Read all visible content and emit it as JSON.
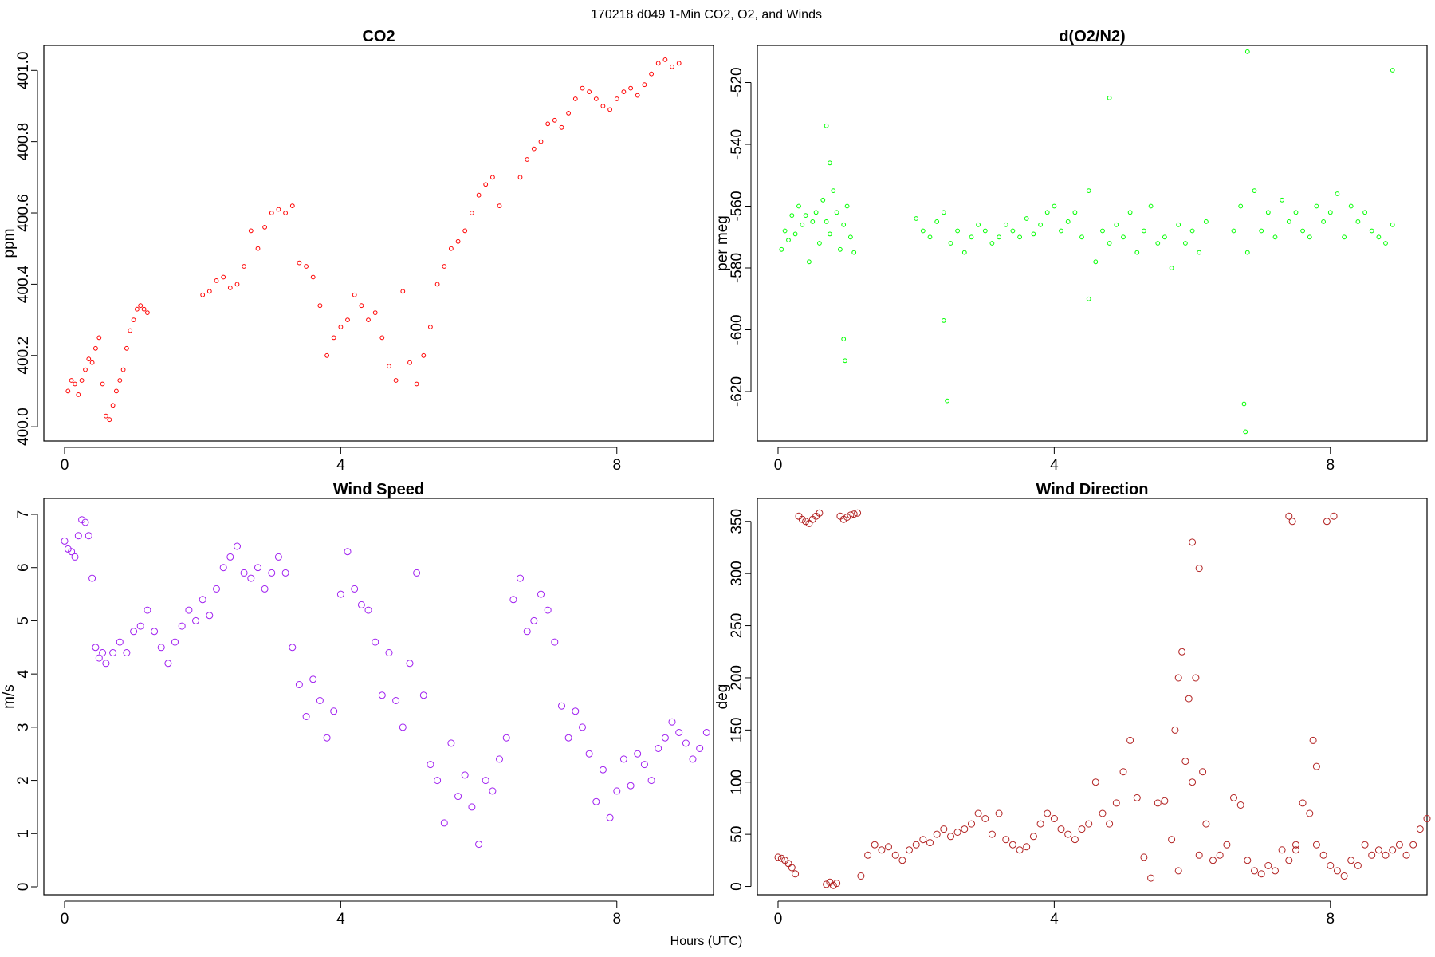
{
  "figure": {
    "title": "170218   d049   1-Min CO2, O2, and Winds",
    "xlabel": "Hours (UTC)"
  },
  "chart_data": [
    {
      "type": "scatter",
      "title": "CO2",
      "ylabel": "ppm",
      "xlabel": "",
      "xlim": [
        -0.3,
        9.4
      ],
      "ylim": [
        399.96,
        401.07
      ],
      "xticks": [
        0,
        4,
        8
      ],
      "yticks": [
        400.0,
        400.2,
        400.4,
        400.6,
        400.8,
        401.0
      ],
      "ytick_labels": [
        "400.0",
        "400.2",
        "400.4",
        "400.6",
        "400.8",
        "401.0"
      ],
      "series": [
        {
          "color": "#ff0000",
          "x": [
            0.05,
            0.1,
            0.15,
            0.2,
            0.25,
            0.3,
            0.35,
            0.4,
            0.45,
            0.5,
            0.55,
            0.6,
            0.65,
            0.7,
            0.75,
            0.8,
            0.85,
            0.9,
            0.95,
            1.0,
            1.05,
            1.1,
            1.15,
            1.2,
            2.0,
            2.1,
            2.2,
            2.3,
            2.4,
            2.5,
            2.6,
            2.7,
            2.8,
            2.9,
            3.0,
            3.1,
            3.2,
            3.3,
            3.4,
            3.5,
            3.6,
            3.7,
            3.8,
            3.9,
            4.0,
            4.1,
            4.2,
            4.3,
            4.4,
            4.5,
            4.6,
            4.7,
            4.8,
            4.9,
            5.0,
            5.1,
            5.2,
            5.3,
            5.4,
            5.5,
            5.6,
            5.7,
            5.8,
            5.9,
            6.0,
            6.1,
            6.2,
            6.3,
            6.6,
            6.7,
            6.8,
            6.9,
            7.0,
            7.1,
            7.2,
            7.3,
            7.4,
            7.5,
            7.6,
            7.7,
            7.8,
            7.9,
            8.0,
            8.1,
            8.2,
            8.3,
            8.4,
            8.5,
            8.6,
            8.7,
            8.8,
            8.9
          ],
          "y": [
            400.1,
            400.13,
            400.12,
            400.09,
            400.13,
            400.16,
            400.19,
            400.18,
            400.22,
            400.25,
            400.12,
            400.03,
            400.02,
            400.06,
            400.1,
            400.13,
            400.16,
            400.22,
            400.27,
            400.3,
            400.33,
            400.34,
            400.33,
            400.32,
            400.37,
            400.38,
            400.41,
            400.42,
            400.39,
            400.4,
            400.45,
            400.55,
            400.5,
            400.56,
            400.6,
            400.61,
            400.6,
            400.62,
            400.46,
            400.45,
            400.42,
            400.34,
            400.2,
            400.25,
            400.28,
            400.3,
            400.37,
            400.34,
            400.3,
            400.32,
            400.25,
            400.17,
            400.13,
            400.38,
            400.18,
            400.12,
            400.2,
            400.28,
            400.4,
            400.45,
            400.5,
            400.52,
            400.55,
            400.6,
            400.65,
            400.68,
            400.7,
            400.62,
            400.7,
            400.75,
            400.78,
            400.8,
            400.85,
            400.86,
            400.84,
            400.88,
            400.92,
            400.95,
            400.94,
            400.92,
            400.9,
            400.89,
            400.92,
            400.94,
            400.95,
            400.93,
            400.96,
            400.99,
            401.02,
            401.03,
            401.01,
            401.02
          ]
        }
      ]
    },
    {
      "type": "scatter",
      "title": "d(O2/N2)",
      "ylabel": "per meg",
      "xlabel": "",
      "xlim": [
        -0.3,
        9.4
      ],
      "ylim": [
        -636,
        -508
      ],
      "xticks": [
        0,
        4,
        8
      ],
      "yticks": [
        -620,
        -600,
        -580,
        -560,
        -540,
        -520
      ],
      "ytick_labels": [
        "-620",
        "-600",
        "-580",
        "-560",
        "-540",
        "-520"
      ],
      "series": [
        {
          "color": "#00ff00",
          "x": [
            0.05,
            0.1,
            0.15,
            0.2,
            0.25,
            0.3,
            0.35,
            0.4,
            0.45,
            0.5,
            0.55,
            0.6,
            0.65,
            0.7,
            0.75,
            0.8,
            0.85,
            0.9,
            0.95,
            1.0,
            1.05,
            1.1,
            2.0,
            2.1,
            2.2,
            2.3,
            2.4,
            2.5,
            2.6,
            2.7,
            2.8,
            2.9,
            3.0,
            3.1,
            3.2,
            3.3,
            3.4,
            3.5,
            3.6,
            3.7,
            3.8,
            3.9,
            4.0,
            4.1,
            4.2,
            4.3,
            4.4,
            4.5,
            4.6,
            4.7,
            4.8,
            4.9,
            5.0,
            5.1,
            5.2,
            5.3,
            5.4,
            5.5,
            5.6,
            5.7,
            5.8,
            5.9,
            6.0,
            6.1,
            6.2,
            6.6,
            6.7,
            6.8,
            6.9,
            7.0,
            7.1,
            7.2,
            7.3,
            7.4,
            7.5,
            7.6,
            7.7,
            7.8,
            7.9,
            8.0,
            8.1,
            8.2,
            8.3,
            8.4,
            8.5,
            8.6,
            8.7,
            8.8,
            8.9,
            2.4,
            2.45,
            6.75,
            6.77,
            0.95,
            0.97,
            0.7,
            0.75,
            4.8,
            4.5,
            6.8,
            8.9
          ],
          "y": [
            -574,
            -568,
            -571,
            -563,
            -569,
            -560,
            -566,
            -563,
            -578,
            -565,
            -562,
            -572,
            -558,
            -565,
            -569,
            -555,
            -562,
            -574,
            -566,
            -560,
            -570,
            -575,
            -564,
            -568,
            -570,
            -565,
            -562,
            -572,
            -568,
            -575,
            -570,
            -566,
            -568,
            -572,
            -570,
            -566,
            -568,
            -570,
            -564,
            -569,
            -566,
            -562,
            -560,
            -568,
            -565,
            -562,
            -570,
            -555,
            -578,
            -568,
            -572,
            -566,
            -570,
            -562,
            -575,
            -568,
            -560,
            -572,
            -570,
            -580,
            -566,
            -572,
            -568,
            -575,
            -565,
            -568,
            -560,
            -575,
            -555,
            -568,
            -562,
            -570,
            -558,
            -565,
            -562,
            -568,
            -570,
            -560,
            -565,
            -562,
            -556,
            -570,
            -560,
            -565,
            -562,
            -568,
            -570,
            -572,
            -566,
            -597,
            -623,
            -624,
            -633,
            -603,
            -610,
            -534,
            -546,
            -525,
            -590,
            -510,
            -516
          ]
        }
      ]
    },
    {
      "type": "scatter",
      "title": "Wind Speed",
      "ylabel": "m/s",
      "xlabel": "",
      "xlim": [
        -0.3,
        9.4
      ],
      "ylim": [
        -0.15,
        7.3
      ],
      "xticks": [
        0,
        4,
        8
      ],
      "yticks": [
        0,
        1,
        2,
        3,
        4,
        5,
        6,
        7
      ],
      "ytick_labels": [
        "0",
        "1",
        "2",
        "3",
        "4",
        "5",
        "6",
        "7"
      ],
      "series": [
        {
          "color": "#a020f0",
          "x": [
            0.0,
            0.05,
            0.1,
            0.15,
            0.2,
            0.25,
            0.3,
            0.35,
            0.4,
            0.45,
            0.5,
            0.55,
            0.6,
            0.7,
            0.8,
            0.9,
            1.0,
            1.1,
            1.2,
            1.3,
            1.4,
            1.5,
            1.6,
            1.7,
            1.8,
            1.9,
            2.0,
            2.1,
            2.2,
            2.3,
            2.4,
            2.5,
            2.6,
            2.7,
            2.8,
            2.9,
            3.0,
            3.1,
            3.2,
            3.3,
            3.4,
            3.5,
            3.6,
            3.7,
            3.8,
            3.9,
            4.0,
            4.1,
            4.2,
            4.3,
            4.4,
            4.5,
            4.6,
            4.7,
            4.8,
            4.9,
            5.0,
            5.1,
            5.2,
            5.3,
            5.4,
            5.5,
            5.6,
            5.7,
            5.8,
            5.9,
            6.0,
            6.1,
            6.2,
            6.3,
            6.4,
            6.5,
            6.6,
            6.7,
            6.8,
            6.9,
            7.0,
            7.1,
            7.2,
            7.3,
            7.4,
            7.5,
            7.6,
            7.7,
            7.8,
            7.9,
            8.0,
            8.1,
            8.2,
            8.3,
            8.4,
            8.5,
            8.6,
            8.7,
            8.8,
            8.9,
            9.0,
            9.1,
            9.2,
            9.3
          ],
          "y": [
            6.5,
            6.35,
            6.3,
            6.2,
            6.6,
            6.9,
            6.85,
            6.6,
            5.8,
            4.5,
            4.3,
            4.4,
            4.2,
            4.4,
            4.6,
            4.4,
            4.8,
            4.9,
            5.2,
            4.8,
            4.5,
            4.2,
            4.6,
            4.9,
            5.2,
            5.0,
            5.4,
            5.1,
            5.6,
            6.0,
            6.2,
            6.4,
            5.9,
            5.8,
            6.0,
            5.6,
            5.9,
            6.2,
            5.9,
            4.5,
            3.8,
            3.2,
            3.9,
            3.5,
            2.8,
            3.3,
            5.5,
            6.3,
            5.6,
            5.3,
            5.2,
            4.6,
            3.6,
            4.4,
            3.5,
            3.0,
            4.2,
            5.9,
            3.6,
            2.3,
            2.0,
            1.2,
            2.7,
            1.7,
            2.1,
            1.5,
            0.8,
            2.0,
            1.8,
            2.4,
            2.8,
            5.4,
            5.8,
            4.8,
            5.0,
            5.5,
            5.2,
            4.6,
            3.4,
            2.8,
            3.3,
            3.0,
            2.5,
            1.6,
            2.2,
            1.3,
            1.8,
            2.4,
            1.9,
            2.5,
            2.3,
            2.0,
            2.6,
            2.8,
            3.1,
            2.9,
            2.7,
            2.4,
            2.6,
            2.9
          ]
        }
      ]
    },
    {
      "type": "scatter",
      "title": "Wind Direction",
      "ylabel": "deg",
      "xlabel": "",
      "xlim": [
        -0.3,
        9.4
      ],
      "ylim": [
        -8,
        372
      ],
      "xticks": [
        0,
        4,
        8
      ],
      "yticks": [
        0,
        50,
        100,
        150,
        200,
        250,
        300,
        350
      ],
      "ytick_labels": [
        "0",
        "50",
        "100",
        "150",
        "200",
        "250",
        "300",
        "350"
      ],
      "series": [
        {
          "color": "#b22222",
          "x": [
            0.0,
            0.05,
            0.1,
            0.15,
            0.2,
            0.25,
            0.3,
            0.35,
            0.4,
            0.45,
            0.5,
            0.55,
            0.6,
            0.7,
            0.75,
            0.8,
            0.85,
            0.9,
            0.95,
            1.0,
            1.05,
            1.1,
            1.15,
            1.2,
            1.3,
            1.4,
            1.5,
            1.6,
            1.7,
            1.8,
            1.9,
            2.0,
            2.1,
            2.2,
            2.3,
            2.4,
            2.5,
            2.6,
            2.7,
            2.8,
            2.9,
            3.0,
            3.1,
            3.2,
            3.3,
            3.4,
            3.5,
            3.6,
            3.7,
            3.8,
            3.9,
            4.0,
            4.1,
            4.2,
            4.3,
            4.4,
            4.5,
            4.6,
            4.7,
            4.8,
            4.9,
            5.0,
            5.1,
            5.2,
            5.3,
            5.4,
            5.5,
            5.6,
            5.7,
            5.8,
            5.9,
            6.0,
            6.1,
            6.2,
            6.3,
            6.4,
            6.5,
            6.6,
            6.7,
            6.8,
            6.9,
            7.0,
            7.1,
            7.2,
            7.3,
            7.4,
            7.5,
            7.6,
            7.7,
            7.8,
            7.9,
            8.0,
            8.1,
            8.2,
            8.3,
            8.4,
            8.5,
            8.6,
            8.7,
            8.8,
            8.9,
            9.0,
            9.1,
            9.2,
            9.3,
            9.4,
            5.75,
            5.8,
            5.85,
            5.95,
            6.0,
            6.05,
            6.1,
            6.15,
            7.4,
            7.45,
            7.5,
            7.75,
            7.8,
            7.95,
            8.05
          ],
          "y": [
            28,
            27,
            25,
            22,
            18,
            12,
            355,
            352,
            350,
            348,
            352,
            355,
            358,
            2,
            4,
            1,
            3,
            355,
            352,
            354,
            356,
            357,
            358,
            10,
            30,
            40,
            35,
            38,
            30,
            25,
            35,
            40,
            45,
            42,
            50,
            55,
            48,
            52,
            55,
            60,
            70,
            65,
            50,
            70,
            45,
            40,
            35,
            38,
            48,
            60,
            70,
            65,
            55,
            50,
            45,
            55,
            60,
            100,
            70,
            60,
            80,
            110,
            140,
            85,
            28,
            8,
            80,
            82,
            45,
            15,
            120,
            100,
            30,
            60,
            25,
            30,
            40,
            85,
            78,
            25,
            15,
            12,
            20,
            15,
            35,
            25,
            40,
            80,
            70,
            40,
            30,
            20,
            15,
            10,
            25,
            20,
            40,
            30,
            35,
            30,
            35,
            40,
            30,
            40,
            55,
            65,
            150,
            200,
            225,
            180,
            330,
            200,
            305,
            110,
            355,
            350,
            35,
            140,
            115,
            350,
            355
          ]
        }
      ]
    }
  ]
}
